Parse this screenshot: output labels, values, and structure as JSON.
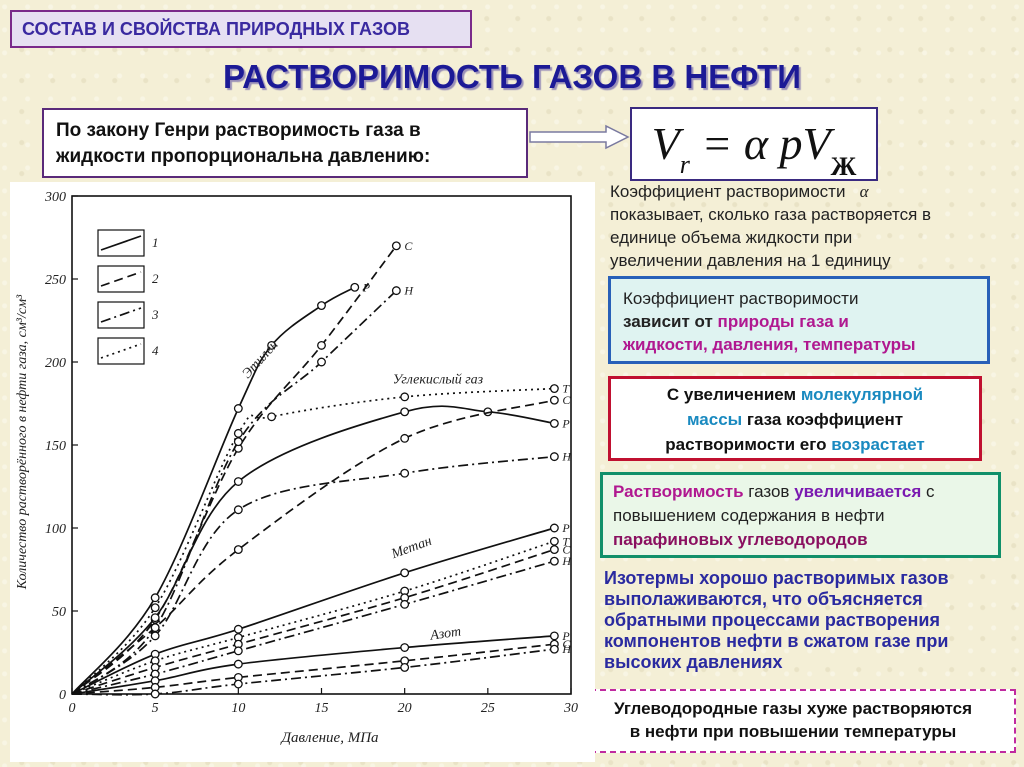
{
  "header": {
    "topic": "СОСТАВ И СВОЙСТВА ПРИРОДНЫХ ГАЗОВ",
    "title": "РАСТВОРИМОСТЬ ГАЗОВ В НЕФТИ"
  },
  "henry": {
    "line1": "По закону Генри растворимость газа в",
    "line2": "жидкости пропорциональна давлению:"
  },
  "formula": {
    "main": "V",
    "sub_r": "r",
    "eq": " = α pV",
    "sub_zh": "Ж"
  },
  "coef": {
    "line1": "Коэффициент растворимости",
    "symbol": "α",
    "line2": "показывает, сколько газа растворяется в",
    "line3": "единице объема жидкости при",
    "line4": "увеличении давления на 1 единицу"
  },
  "box1": {
    "line1": "Коэффициент растворимости",
    "p1": "зависит от ",
    "p2": "природы газа и",
    "p3": "жидкости, давления, температуры"
  },
  "box2": {
    "a1": "С увеличением ",
    "a2": "молекулярной",
    "b1": "массы",
    "b2": " газа коэффициент",
    "c1": "растворимости его ",
    "c2": "возрастает"
  },
  "box3": {
    "a1": "Растворимость",
    "a2": " газов ",
    "a3": "увеличивается",
    "a4": " с",
    "b1": "повышением содержания в нефти",
    "c1": "парафиновых углеводородов"
  },
  "isotherms": {
    "l1": "Изотермы хорошо растворимых газов",
    "l2": "выполаживаются, что объясняется",
    "l3": "обратными процессами растворения",
    "l4": "компонентов нефти в сжатом газе при",
    "l5": "высоких давлениях"
  },
  "hydrocarbons": {
    "l1": "Углеводородные газы хуже растворяются",
    "l2": "в нефти при повышении температуры"
  },
  "chart_data": {
    "type": "line",
    "xlabel": "Давление, МПа",
    "ylabel": "Количество растворённого в нефти газа, см³/см³",
    "xlim": [
      0,
      30
    ],
    "ylim": [
      0,
      300
    ],
    "xticks": [
      0,
      5,
      10,
      15,
      20,
      25,
      30
    ],
    "yticks": [
      0,
      50,
      100,
      150,
      200,
      250,
      300
    ],
    "legend": [
      {
        "key": "1",
        "style": "solid"
      },
      {
        "key": "2",
        "style": "dashed"
      },
      {
        "key": "3",
        "style": "dashdot"
      },
      {
        "key": "4",
        "style": "dotted"
      }
    ],
    "group_labels": [
      {
        "text": "Этилен",
        "x": 11.5,
        "y": 200
      },
      {
        "text": "Углекислый газ",
        "x": 22,
        "y": 187
      },
      {
        "text": "Метан",
        "x": 20.5,
        "y": 86
      },
      {
        "text": "Азот",
        "x": 22.5,
        "y": 34
      }
    ],
    "series": [
      {
        "gas": "Этилен",
        "label": "Р",
        "style": "solid",
        "points": [
          [
            0,
            0
          ],
          [
            5,
            58
          ],
          [
            10,
            172
          ],
          [
            12,
            210
          ],
          [
            15,
            234
          ],
          [
            17,
            245
          ]
        ]
      },
      {
        "gas": "Этилен",
        "label": "С",
        "style": "dashed",
        "points": [
          [
            0,
            0
          ],
          [
            5,
            45
          ],
          [
            10,
            148
          ],
          [
            15,
            210
          ],
          [
            19.5,
            270
          ]
        ]
      },
      {
        "gas": "Этилен",
        "label": "Н",
        "style": "dashdot",
        "points": [
          [
            0,
            0
          ],
          [
            5,
            40
          ],
          [
            10,
            152
          ],
          [
            15,
            200
          ],
          [
            19.5,
            243
          ]
        ]
      },
      {
        "gas": "Углекислый газ",
        "label": "Т",
        "style": "dotted",
        "points": [
          [
            0,
            0
          ],
          [
            5,
            52
          ],
          [
            10,
            157
          ],
          [
            12,
            167
          ],
          [
            20,
            179
          ],
          [
            29,
            184
          ]
        ]
      },
      {
        "gas": "Углекислый газ",
        "label": "Р",
        "style": "solid",
        "points": [
          [
            0,
            0
          ],
          [
            5,
            46
          ],
          [
            10,
            128
          ],
          [
            20,
            170
          ],
          [
            25,
            170
          ],
          [
            29,
            163
          ]
        ]
      },
      {
        "gas": "Углекислый газ",
        "label": "С",
        "style": "dashed",
        "points": [
          [
            0,
            0
          ],
          [
            5,
            40
          ],
          [
            10,
            87
          ],
          [
            20,
            154
          ],
          [
            29,
            177
          ]
        ]
      },
      {
        "gas": "Углекислый газ",
        "label": "Н",
        "style": "dashdot",
        "points": [
          [
            0,
            0
          ],
          [
            5,
            35
          ],
          [
            10,
            111
          ],
          [
            20,
            133
          ],
          [
            29,
            143
          ]
        ]
      },
      {
        "gas": "Метан",
        "label": "Р",
        "style": "solid",
        "points": [
          [
            0,
            0
          ],
          [
            5,
            24
          ],
          [
            10,
            39
          ],
          [
            20,
            73
          ],
          [
            29,
            100
          ]
        ]
      },
      {
        "gas": "Метан",
        "label": "Т",
        "style": "dotted",
        "points": [
          [
            0,
            0
          ],
          [
            5,
            20
          ],
          [
            10,
            34
          ],
          [
            20,
            62
          ],
          [
            29,
            92
          ]
        ]
      },
      {
        "gas": "Метан",
        "label": "С",
        "style": "dashed",
        "points": [
          [
            0,
            0
          ],
          [
            5,
            16
          ],
          [
            10,
            30
          ],
          [
            20,
            58
          ],
          [
            29,
            87
          ]
        ]
      },
      {
        "gas": "Метан",
        "label": "Н",
        "style": "dashdot",
        "points": [
          [
            0,
            0
          ],
          [
            5,
            12
          ],
          [
            10,
            26
          ],
          [
            20,
            54
          ],
          [
            29,
            80
          ]
        ]
      },
      {
        "gas": "Азот",
        "label": "Р",
        "style": "solid",
        "points": [
          [
            0,
            0
          ],
          [
            5,
            8
          ],
          [
            10,
            18
          ],
          [
            20,
            28
          ],
          [
            29,
            35
          ]
        ]
      },
      {
        "gas": "Азот",
        "label": "С",
        "style": "dashed",
        "points": [
          [
            0,
            0
          ],
          [
            5,
            4
          ],
          [
            10,
            10
          ],
          [
            20,
            20
          ],
          [
            29,
            30
          ]
        ]
      },
      {
        "gas": "Азот",
        "label": "Н",
        "style": "dashdot",
        "points": [
          [
            0,
            0
          ],
          [
            5,
            0
          ],
          [
            10,
            6
          ],
          [
            20,
            16
          ],
          [
            29,
            27
          ]
        ]
      }
    ]
  }
}
